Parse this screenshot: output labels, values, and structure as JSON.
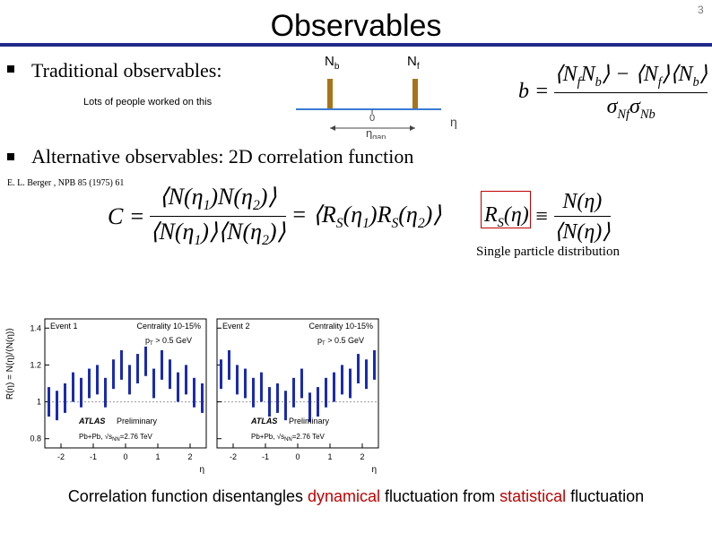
{
  "header": {
    "title": "Observables",
    "page_number": "3"
  },
  "bullets": [
    {
      "text": "Traditional observables:",
      "note": "Lots of people worked on this"
    },
    {
      "text": "Alternative observables: 2D correlation function",
      "reference": "E. L. Berger , NPB 85 (1975) 61"
    }
  ],
  "gap_diagram": {
    "backward": {
      "text": "N",
      "sub": "b"
    },
    "forward": {
      "text": "N",
      "sub": "f"
    },
    "origin": "0",
    "gap": {
      "text": "η",
      "sub": "gap"
    },
    "axis": "η"
  },
  "b_formula": {
    "lhs": "b =",
    "numerator": [
      {
        "text": "⟨N",
        "sub": "f"
      },
      {
        "text": "N",
        "sub": "b"
      },
      {
        "text": "⟩ − ⟨N",
        "sub": "f"
      },
      {
        "text": "⟩⟨N",
        "sub": "b"
      },
      {
        "text": "⟩"
      }
    ],
    "denominator": [
      {
        "text": "σ",
        "sub": "Nf"
      },
      {
        "text": "σ",
        "sub": "Nb"
      }
    ]
  },
  "c_formula": {
    "lhs": "C =",
    "numerator": [
      {
        "text": "⟨N(η",
        "sub": "1"
      },
      {
        "text": ")N(η",
        "sub": "2"
      },
      {
        "text": ")⟩"
      }
    ],
    "denominator": [
      {
        "text": "⟨N(η",
        "sub": "1"
      },
      {
        "text": ")⟩⟨N(η",
        "sub": "2"
      },
      {
        "text": ")⟩"
      }
    ],
    "rhs": [
      {
        "text": "= ⟨R",
        "sub": "S"
      },
      {
        "text": "(η",
        "sub": "1"
      },
      {
        "text": ")R",
        "sub": "S"
      },
      {
        "text": "(η",
        "sub": "2"
      },
      {
        "text": ")⟩"
      }
    ]
  },
  "rs_formula": {
    "lhs": [
      {
        "text": "R",
        "sub": "S"
      },
      {
        "text": "(η)"
      }
    ],
    "equiv": "≡",
    "numerator": [
      {
        "text": "N(η)"
      }
    ],
    "denominator": [
      {
        "text": "⟨N(η)⟩"
      }
    ],
    "caption": "Single particle distribution"
  },
  "plot": {
    "y_label": "R(η) = N(η)/⟨N(η)⟩",
    "x_label": "η",
    "xlim": [
      -2.5,
      2.5
    ],
    "ylim": [
      0.75,
      1.45
    ],
    "xticks": [
      -2,
      -1,
      0,
      1,
      2
    ],
    "yticks": [
      0.8,
      1,
      1.2,
      1.4
    ],
    "reference_line": 1,
    "panels": [
      {
        "event": "Event 1",
        "centrality": "Centrality 10-15%",
        "cut": {
          "text": "p",
          "sub": "T",
          "rest": " > 0.5 GeV"
        },
        "experiment": "ATLAS",
        "status": "Preliminary",
        "system": "Pb+Pb, √s",
        "system_sub": "NN",
        "energy": "=2.76 TeV",
        "error": 0.08,
        "x": [
          -2.375,
          -2.125,
          -1.875,
          -1.625,
          -1.375,
          -1.125,
          -0.875,
          -0.625,
          -0.375,
          -0.125,
          0.125,
          0.375,
          0.625,
          0.875,
          1.125,
          1.375,
          1.625,
          1.875,
          2.125,
          2.375
        ],
        "values": [
          1.0,
          0.98,
          1.02,
          1.08,
          1.05,
          1.1,
          1.12,
          1.05,
          1.15,
          1.2,
          1.12,
          1.18,
          1.22,
          1.1,
          1.2,
          1.15,
          1.08,
          1.12,
          1.05,
          1.02
        ]
      },
      {
        "event": "Event 2",
        "centrality": "Centrality 10-15%",
        "cut": {
          "text": "p",
          "sub": "T",
          "rest": " > 0.5 GeV"
        },
        "experiment": "ATLAS",
        "status": "Preliminary",
        "system": "Pb+Pb, √s",
        "system_sub": "NN",
        "energy": "=2.76 TeV",
        "error": 0.08,
        "x": [
          -2.375,
          -2.125,
          -1.875,
          -1.625,
          -1.375,
          -1.125,
          -0.875,
          -0.625,
          -0.375,
          -0.125,
          0.125,
          0.375,
          0.625,
          0.875,
          1.125,
          1.375,
          1.625,
          1.875,
          2.125,
          2.375
        ],
        "values": [
          1.15,
          1.2,
          1.12,
          1.1,
          1.05,
          1.08,
          1.0,
          1.02,
          0.98,
          1.05,
          1.1,
          0.97,
          1.0,
          1.05,
          1.08,
          1.12,
          1.1,
          1.18,
          1.15,
          1.2
        ]
      }
    ]
  },
  "caption": [
    {
      "text": "Correlation function disentangles ",
      "color": "#000000"
    },
    {
      "text": "dynamical",
      "color": "#c00000"
    },
    {
      "text": " fluctuation from ",
      "color": "#000000"
    },
    {
      "text": "statistical",
      "color": "#c00000"
    },
    {
      "text": " fluctuation",
      "color": "#000000"
    }
  ]
}
